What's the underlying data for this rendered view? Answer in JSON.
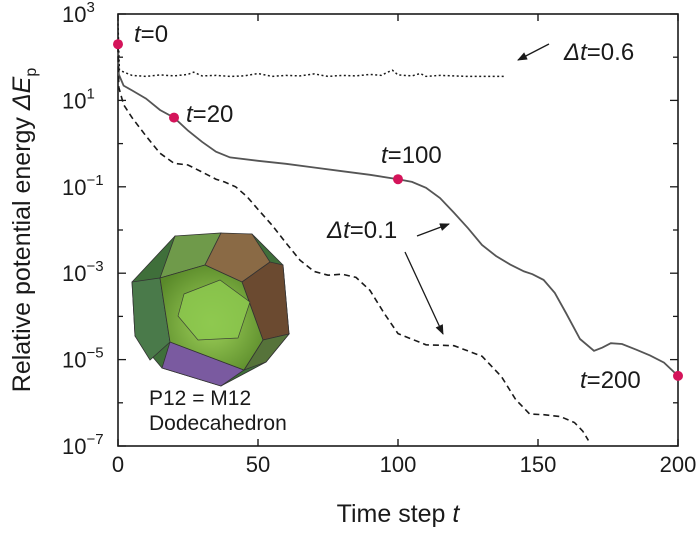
{
  "chart_data": {
    "type": "line",
    "title": "",
    "xlabel": {
      "main": "Time step ",
      "var": "t"
    },
    "ylabel": {
      "main": "Relative potential energy ",
      "var": "ΔE",
      "sub": "p"
    },
    "xlim": [
      0,
      200
    ],
    "ylim_log10": [
      -7,
      3
    ],
    "yscale": "log",
    "x_ticks": [
      0,
      50,
      100,
      150,
      200
    ],
    "x_tick_labels": [
      "0",
      "50",
      "100",
      "150",
      "200"
    ],
    "y_tick_exponents": [
      3,
      1,
      -1,
      -3,
      -5,
      -7
    ],
    "y_tick_base": "10",
    "y_tick_labels": [
      "3",
      "1",
      "−1",
      "−3",
      "−5",
      "−7"
    ],
    "grid": false,
    "colors": {
      "solid": "#555555",
      "dashed": "#1a1a1a",
      "dotted": "#1a1a1a",
      "marker": "#d4145a",
      "axis": "#1a1a1a"
    },
    "series": [
      {
        "style": "solid",
        "points": [
          [
            0,
            200
          ],
          [
            0.3,
            40
          ],
          [
            2,
            22
          ],
          [
            5,
            17
          ],
          [
            10,
            11
          ],
          [
            15,
            6
          ],
          [
            20,
            4
          ],
          [
            25,
            2.0
          ],
          [
            30,
            1.1
          ],
          [
            35,
            0.65
          ],
          [
            40,
            0.48
          ],
          [
            50,
            0.4
          ],
          [
            60,
            0.34
          ],
          [
            70,
            0.28
          ],
          [
            80,
            0.23
          ],
          [
            90,
            0.19
          ],
          [
            100,
            0.15
          ],
          [
            105,
            0.13
          ],
          [
            110,
            0.095
          ],
          [
            115,
            0.055
          ],
          [
            120,
            0.025
          ],
          [
            125,
            0.011
          ],
          [
            130,
            0.0045
          ],
          [
            135,
            0.0025
          ],
          [
            140,
            0.0016
          ],
          [
            145,
            0.0011
          ],
          [
            148,
            0.00095
          ],
          [
            152,
            0.0007
          ],
          [
            156,
            0.00035
          ],
          [
            160,
            0.00012
          ],
          [
            165,
            3e-05
          ],
          [
            170,
            1.6e-05
          ],
          [
            173,
            1.9e-05
          ],
          [
            176,
            2.4e-05
          ],
          [
            180,
            2.3e-05
          ],
          [
            185,
            1.7e-05
          ],
          [
            190,
            1.25e-05
          ],
          [
            195,
            8.5e-06
          ],
          [
            200,
            4.2e-06
          ]
        ]
      },
      {
        "style": "dashed",
        "points": [
          [
            0,
            180
          ],
          [
            0.3,
            20
          ],
          [
            2,
            8
          ],
          [
            5,
            4
          ],
          [
            10,
            1.5
          ],
          [
            15,
            0.6
          ],
          [
            20,
            0.35
          ],
          [
            25,
            0.32
          ],
          [
            30,
            0.22
          ],
          [
            35,
            0.15
          ],
          [
            38,
            0.13
          ],
          [
            42,
            0.1
          ],
          [
            46,
            0.06
          ],
          [
            50,
            0.03
          ],
          [
            55,
            0.013
          ],
          [
            60,
            0.005
          ],
          [
            65,
            0.002
          ],
          [
            70,
            0.0011
          ],
          [
            75,
            0.0009
          ],
          [
            80,
            0.00095
          ],
          [
            85,
            0.0008
          ],
          [
            90,
            0.0004
          ],
          [
            95,
            0.00012
          ],
          [
            100,
            4e-05
          ],
          [
            110,
            2.2e-05
          ],
          [
            120,
            2.1e-05
          ],
          [
            130,
            1.2e-05
          ],
          [
            137,
            4e-06
          ],
          [
            142,
            1.2e-06
          ],
          [
            147,
            5.5e-07
          ],
          [
            152,
            5.3e-07
          ],
          [
            158,
            4.8e-07
          ],
          [
            163,
            3.5e-07
          ],
          [
            166,
            2.2e-07
          ],
          [
            168,
            1.35e-07
          ]
        ]
      },
      {
        "style": "dotted",
        "points": [
          [
            0,
            600
          ],
          [
            0.5,
            50
          ],
          [
            5,
            38
          ],
          [
            10,
            36
          ],
          [
            15,
            39
          ],
          [
            20,
            37
          ],
          [
            25,
            40
          ],
          [
            27,
            45
          ],
          [
            30,
            37
          ],
          [
            35,
            38
          ],
          [
            40,
            36
          ],
          [
            45,
            37
          ],
          [
            50,
            42
          ],
          [
            55,
            36
          ],
          [
            60,
            38
          ],
          [
            65,
            37
          ],
          [
            70,
            41
          ],
          [
            75,
            36
          ],
          [
            80,
            38
          ],
          [
            85,
            37
          ],
          [
            90,
            40
          ],
          [
            94,
            38
          ],
          [
            96,
            44
          ],
          [
            98,
            50
          ],
          [
            100,
            39
          ],
          [
            105,
            37
          ],
          [
            108,
            42
          ],
          [
            110,
            36
          ],
          [
            115,
            38
          ],
          [
            120,
            37
          ],
          [
            125,
            36
          ],
          [
            130,
            36
          ],
          [
            135,
            36
          ],
          [
            138,
            36
          ]
        ]
      }
    ],
    "markers": [
      {
        "x": 0,
        "y": 200,
        "label": "=0"
      },
      {
        "x": 20,
        "y": 4,
        "label": "=20"
      },
      {
        "x": 100,
        "y": 0.15,
        "label": "=100"
      },
      {
        "x": 200,
        "y": 4.2e-06,
        "label": "=200"
      }
    ],
    "marker_var": "t",
    "annotations": [
      {
        "var": "Δt",
        "text": "=0.6"
      },
      {
        "var": "Δt",
        "text": "=0.1"
      }
    ],
    "inset": {
      "line1": "P12 = M12",
      "line2": "Dodecahedron"
    }
  }
}
